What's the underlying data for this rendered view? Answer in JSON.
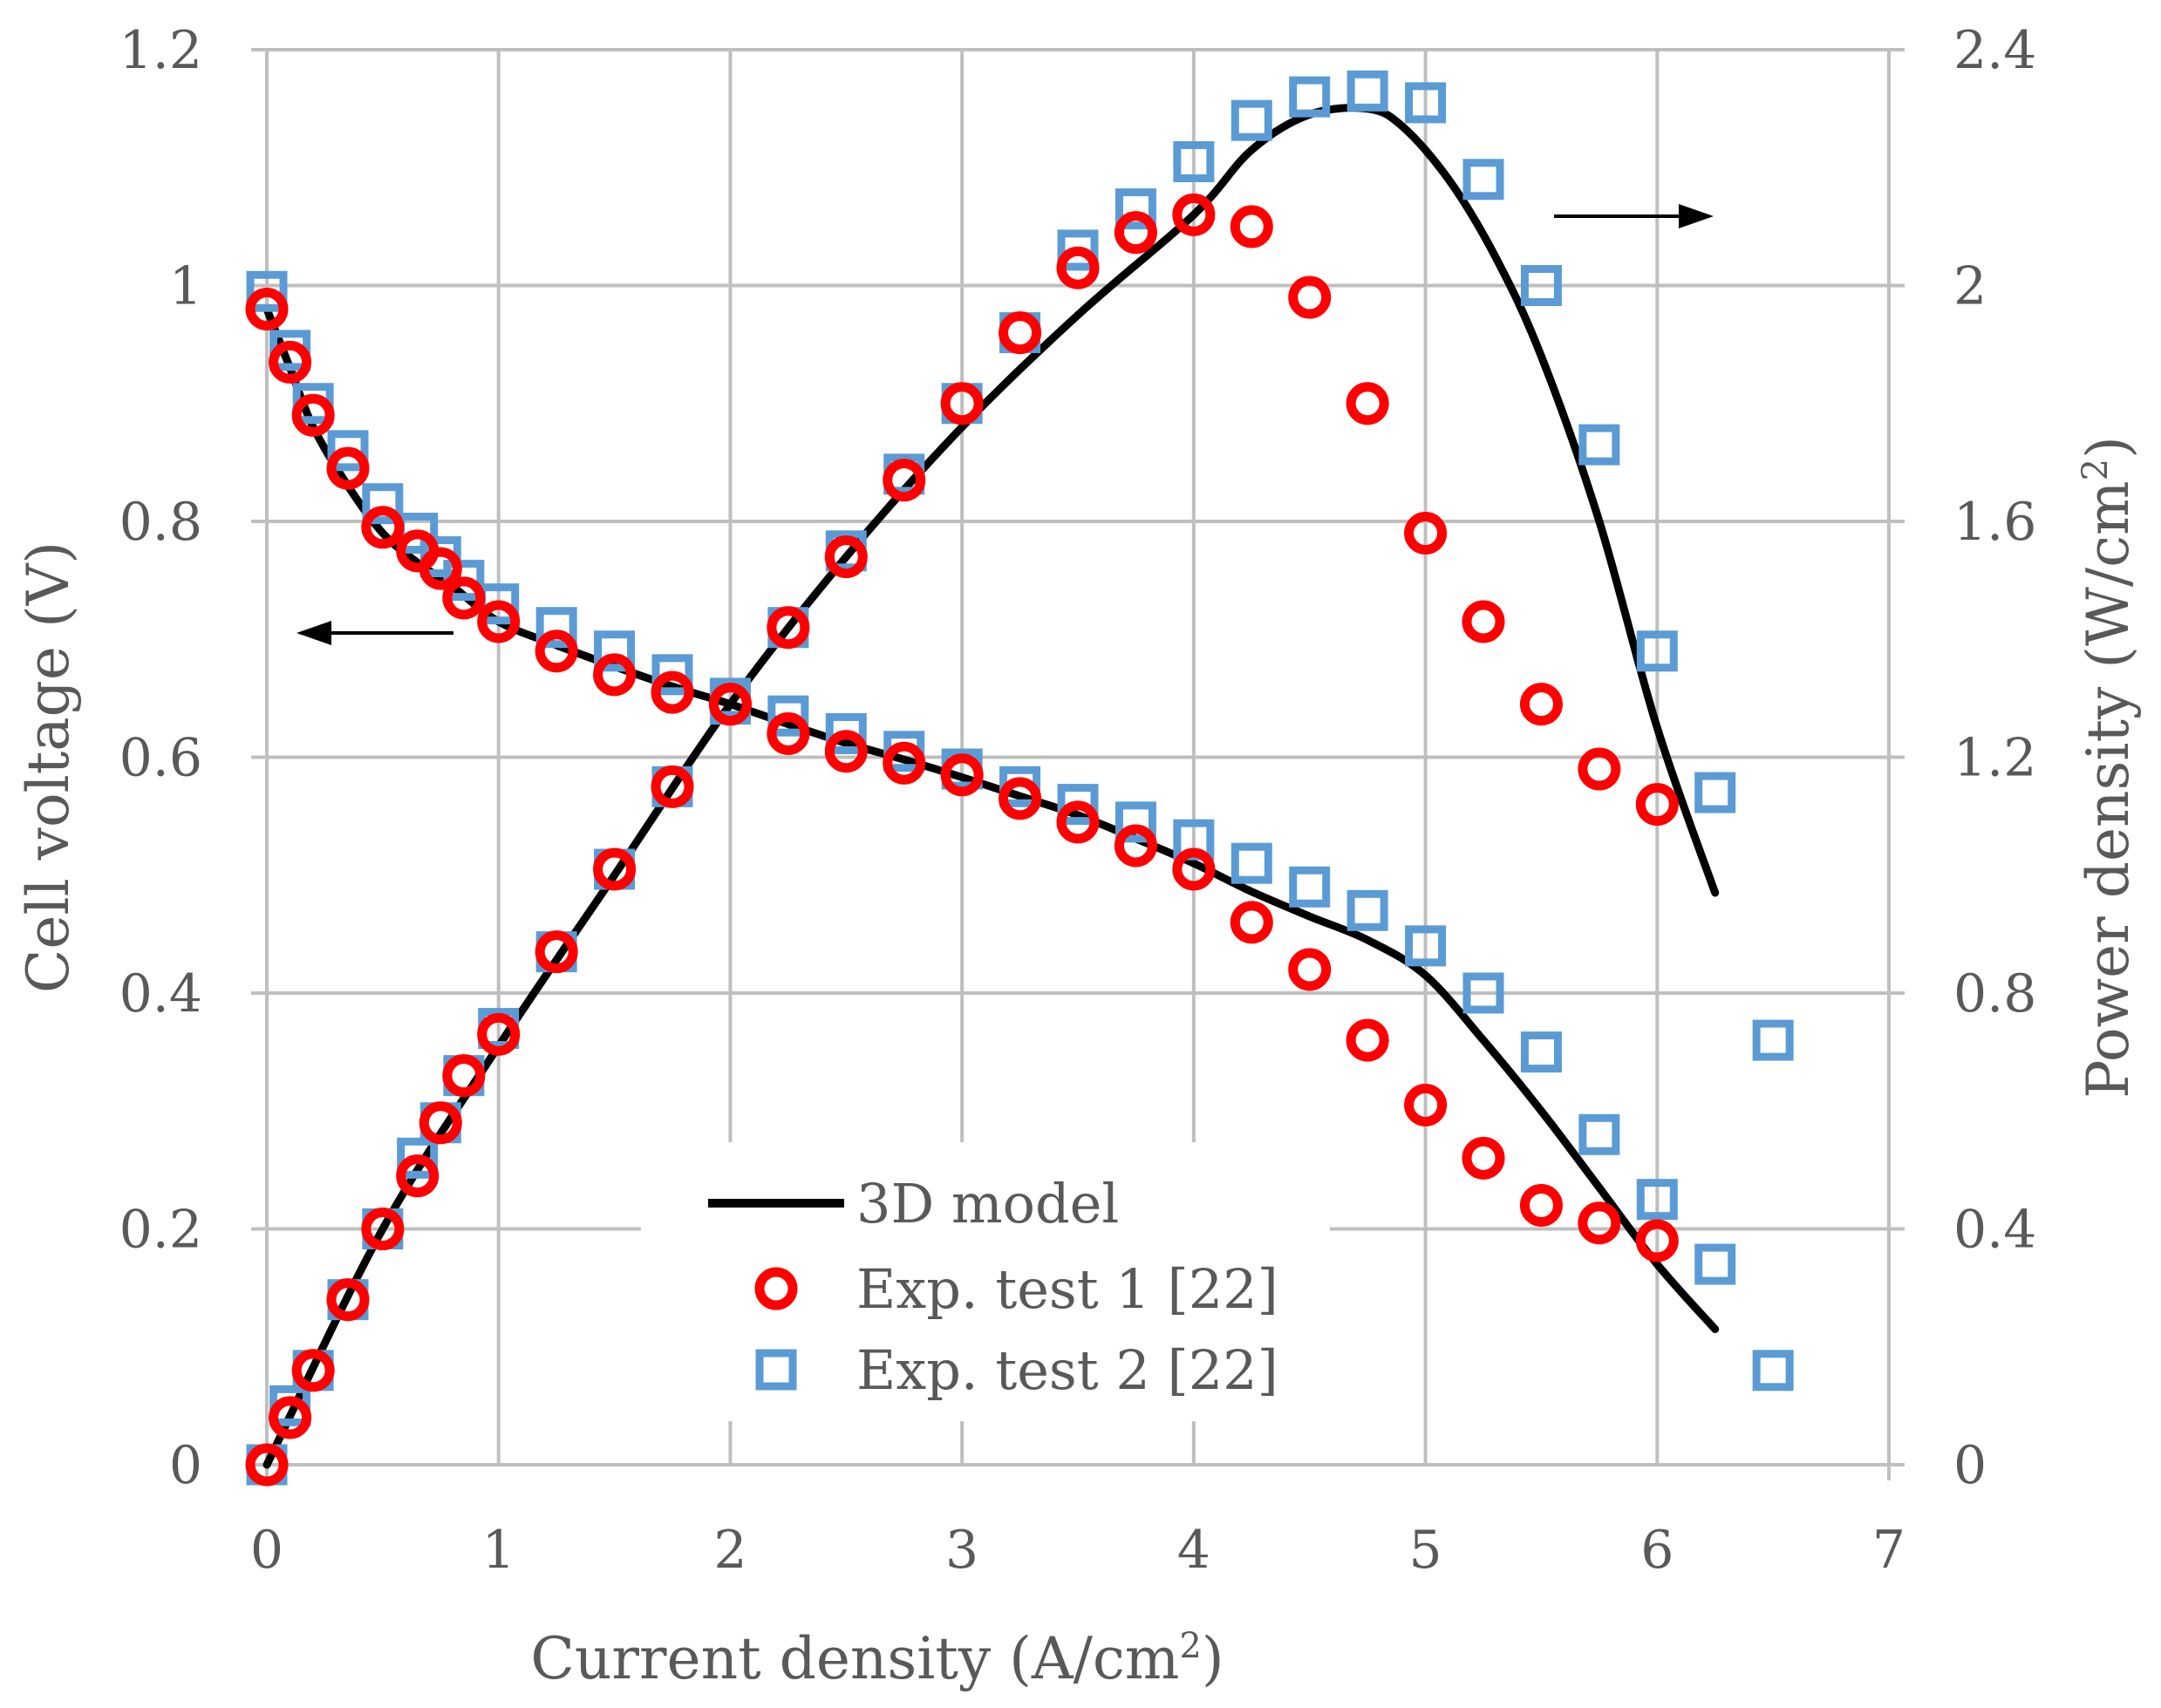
{
  "chart_data": {
    "type": "scatter",
    "xlabel": "Current density (A/cm",
    "xlabel_sup": "2",
    "xlabel_end": ")",
    "ylabel_left": "Cell voltage (V)",
    "ylabel_right": "Power density (W/cm",
    "ylabel_right_sup": "2",
    "ylabel_right_end": ")",
    "xlim": [
      0,
      7
    ],
    "ylim_left": [
      0,
      1.2
    ],
    "ylim_right": [
      0,
      2.4
    ],
    "x_ticks": [
      "0",
      "1",
      "2",
      "3",
      "4",
      "5",
      "6",
      "7"
    ],
    "y_left_ticks": [
      "0",
      "0.2",
      "0.4",
      "0.6",
      "0.8",
      "1",
      "1.2"
    ],
    "y_right_ticks": [
      "0",
      "0.4",
      "0.8",
      "1.2",
      "1.6",
      "2",
      "2.4"
    ],
    "grid": true,
    "legend": {
      "position": "bottom-center",
      "entries": [
        "3D model",
        "Exp. test 1 [22]",
        "Exp. test 2 [22]"
      ]
    },
    "annotations": [
      {
        "type": "arrow",
        "direction": "left",
        "meaning": "voltage curves refer to left axis"
      },
      {
        "type": "arrow",
        "direction": "right",
        "meaning": "power curves refer to right axis"
      }
    ],
    "series": [
      {
        "name": "3D model",
        "kind": "line",
        "axis": "left",
        "color": "#000000",
        "x": [
          0,
          0.1,
          0.2,
          0.35,
          0.5,
          0.65,
          0.8,
          1.0,
          1.25,
          1.5,
          1.75,
          2.0,
          2.25,
          2.5,
          2.75,
          3.0,
          3.25,
          3.5,
          3.75,
          4.0,
          4.25,
          4.5,
          4.75,
          5.0,
          5.25,
          5.5,
          5.75,
          6.0,
          6.25
        ],
        "y": [
          0.98,
          0.93,
          0.88,
          0.83,
          0.79,
          0.765,
          0.745,
          0.715,
          0.695,
          0.677,
          0.66,
          0.645,
          0.628,
          0.612,
          0.598,
          0.583,
          0.567,
          0.551,
          0.531,
          0.51,
          0.486,
          0.465,
          0.445,
          0.415,
          0.36,
          0.3,
          0.235,
          0.17,
          0.115
        ]
      },
      {
        "name": "3D model",
        "kind": "line",
        "axis": "right",
        "color": "#000000",
        "x": [
          0,
          0.5,
          1.0,
          1.5,
          2.0,
          2.5,
          3.0,
          3.5,
          4.0,
          4.25,
          4.5,
          4.75,
          4.9,
          5.1,
          5.3,
          5.5,
          5.75,
          6.0,
          6.25
        ],
        "y": [
          0.0,
          0.4,
          0.71,
          1.0,
          1.29,
          1.54,
          1.76,
          1.95,
          2.12,
          2.23,
          2.29,
          2.3,
          2.27,
          2.18,
          2.05,
          1.88,
          1.6,
          1.25,
          0.97
        ]
      },
      {
        "name": "Exp. test 1 [22]",
        "kind": "scatter",
        "marker": "circle",
        "axis": "left",
        "color": "#ff0000",
        "x": [
          0,
          0.1,
          0.2,
          0.35,
          0.5,
          0.65,
          0.75,
          0.85,
          1.0,
          1.25,
          1.5,
          1.75,
          2.0,
          2.25,
          2.5,
          2.75,
          3.0,
          3.25,
          3.5,
          3.75,
          4.0,
          4.25,
          4.5,
          4.75,
          5.0,
          5.25,
          5.5,
          5.75,
          6.0
        ],
        "y": [
          0.98,
          0.935,
          0.89,
          0.845,
          0.795,
          0.775,
          0.76,
          0.735,
          0.715,
          0.69,
          0.67,
          0.655,
          0.645,
          0.62,
          0.605,
          0.595,
          0.585,
          0.565,
          0.545,
          0.525,
          0.505,
          0.46,
          0.42,
          0.36,
          0.305,
          0.26,
          0.22,
          0.205,
          0.19
        ]
      },
      {
        "name": "Exp. test 1 [22]",
        "kind": "scatter",
        "marker": "circle",
        "axis": "right",
        "color": "#ff0000",
        "x": [
          0,
          0.1,
          0.2,
          0.35,
          0.5,
          0.65,
          0.75,
          0.85,
          1.0,
          1.25,
          1.5,
          1.75,
          2.0,
          2.25,
          2.5,
          2.75,
          3.0,
          3.25,
          3.5,
          3.75,
          4.0,
          4.25,
          4.5,
          4.75,
          5.0,
          5.25,
          5.5,
          5.75,
          6.0
        ],
        "y": [
          0.0,
          0.08,
          0.16,
          0.28,
          0.4,
          0.49,
          0.58,
          0.66,
          0.73,
          0.87,
          1.01,
          1.15,
          1.29,
          1.42,
          1.54,
          1.67,
          1.8,
          1.92,
          2.03,
          2.09,
          2.12,
          2.1,
          1.98,
          1.8,
          1.58,
          1.43,
          1.29,
          1.18,
          1.12
        ]
      },
      {
        "name": "Exp. test 2 [22]",
        "kind": "scatter",
        "marker": "square",
        "axis": "left",
        "color": "#5b9bd5",
        "x": [
          0,
          0.1,
          0.2,
          0.35,
          0.5,
          0.65,
          0.75,
          0.85,
          1.0,
          1.25,
          1.5,
          1.75,
          2.0,
          2.25,
          2.5,
          2.75,
          3.0,
          3.25,
          3.5,
          3.75,
          4.0,
          4.25,
          4.5,
          4.75,
          5.0,
          5.25,
          5.5,
          5.75,
          6.0,
          6.25,
          6.5
        ],
        "y": [
          0.995,
          0.945,
          0.9,
          0.86,
          0.815,
          0.79,
          0.77,
          0.75,
          0.73,
          0.71,
          0.69,
          0.67,
          0.65,
          0.635,
          0.62,
          0.605,
          0.59,
          0.575,
          0.56,
          0.545,
          0.53,
          0.51,
          0.49,
          0.47,
          0.44,
          0.4,
          0.35,
          0.28,
          0.225,
          0.17,
          0.08
        ]
      },
      {
        "name": "Exp. test 2 [22]",
        "kind": "scatter",
        "marker": "square",
        "axis": "right",
        "color": "#5b9bd5",
        "x": [
          0,
          0.1,
          0.2,
          0.35,
          0.5,
          0.65,
          0.75,
          0.85,
          1.0,
          1.25,
          1.5,
          1.75,
          2.0,
          2.25,
          2.5,
          2.75,
          3.0,
          3.25,
          3.5,
          3.75,
          4.0,
          4.25,
          4.5,
          4.75,
          5.0,
          5.25,
          5.5,
          5.75,
          6.0,
          6.25,
          6.5
        ],
        "y": [
          0.0,
          0.1,
          0.16,
          0.28,
          0.4,
          0.52,
          0.58,
          0.66,
          0.74,
          0.87,
          1.01,
          1.15,
          1.29,
          1.42,
          1.55,
          1.68,
          1.8,
          1.92,
          2.06,
          2.13,
          2.21,
          2.28,
          2.32,
          2.33,
          2.31,
          2.18,
          2.0,
          1.73,
          1.38,
          1.14,
          0.72
        ]
      }
    ]
  }
}
